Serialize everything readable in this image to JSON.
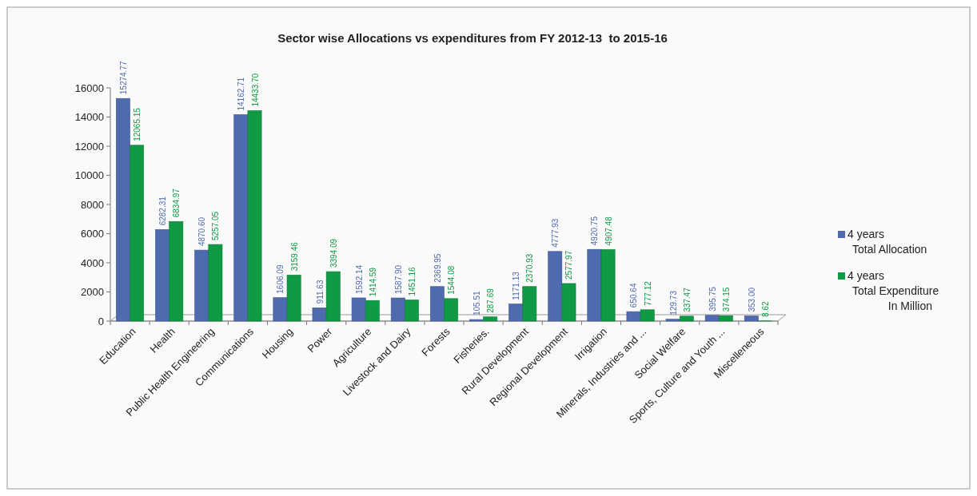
{
  "chart_data": {
    "type": "bar",
    "title": "Sector wise Allocations vs expenditures from FY 2012-13  to 2015-16",
    "categories": [
      "Education",
      "Health",
      "Public Health Engineering",
      "Communications",
      "Housing",
      "Power",
      "Agriculture",
      "Livestock and Dairy",
      "Forests",
      "Fisheries.",
      "Rural Development",
      "Regional Development",
      "Irrigation",
      "Minerals, Industries and ...",
      "Social Welfare",
      "Sports, Culture and Youth ...",
      "Miscelleneous"
    ],
    "series": [
      {
        "name": "4 years\nTotal Allocation",
        "color": "#4f6bb0",
        "values": [
          15274.77,
          6282.31,
          4870.6,
          14162.71,
          1606.09,
          911.63,
          1592.14,
          1587.9,
          2369.95,
          105.51,
          1171.13,
          4777.93,
          4920.75,
          650.64,
          129.73,
          395.75,
          353.0
        ],
        "value_labels": [
          "15274.77",
          "6282.31",
          "4870.60",
          "14162.71",
          "1606.09",
          "911.63",
          "1592.14",
          "1587.90",
          "2369.95",
          "105.51",
          "1171.13",
          "4777.93",
          "4920.75",
          "650.64",
          "129.73",
          "395.75",
          "353.00"
        ]
      },
      {
        "name": "4 years\nTotal Expenditure\nIn Million",
        "color": "#0f9a43",
        "values": [
          12065.15,
          6834.97,
          5257.05,
          14433.7,
          3159.46,
          3394.09,
          1414.59,
          1451.16,
          1544.08,
          287.69,
          2370.93,
          2577.97,
          4907.48,
          777.12,
          337.47,
          374.15,
          8.62
        ],
        "value_labels": [
          "12065.15",
          "6834.97",
          "5257.05",
          "14433.70",
          "3159.46",
          "3394.09",
          "1414.59",
          "1451.16",
          "1544.08",
          "287.69",
          "2370.93",
          "2577.97",
          "4907.48",
          "777.12",
          "337.47",
          "374.15",
          "8.62"
        ]
      }
    ],
    "ylim": [
      0,
      16000
    ],
    "yticks": [
      0,
      2000,
      4000,
      6000,
      8000,
      10000,
      12000,
      14000,
      16000
    ],
    "legend": "right"
  }
}
